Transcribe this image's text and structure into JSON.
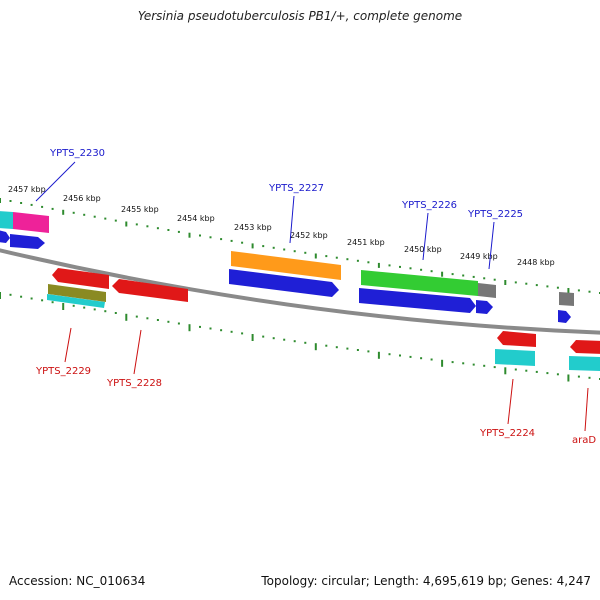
{
  "title": "Yersinia pseudotuberculosis PB1/+, complete genome",
  "footer": {
    "accession": "Accession: NC_010634",
    "stats": "Topology: circular; Length: 4,695,619 bp; Genes: 4,247"
  },
  "scale_labels": [
    "2457 kbp",
    "2456 kbp",
    "2455 kbp",
    "2454 kbp",
    "2453 kbp",
    "2452 kbp",
    "2451 kbp",
    "2450 kbp",
    "2449 kbp",
    "2448 kbp"
  ],
  "gene_labels_top": [
    "YPTS_2230",
    "YPTS_2227",
    "YPTS_2226",
    "YPTS_2225"
  ],
  "gene_labels_bottom": [
    "YPTS_2229",
    "YPTS_2228",
    "YPTS_2224",
    "araD"
  ],
  "colors": {
    "forward_label": "#1a1acc",
    "reverse_label": "#cc1111",
    "backbone": "#8a8a8a",
    "tick": "#2e8b2e",
    "cds_forward": "#1f1fd6",
    "cds_reverse": "#e01818",
    "orange": "#ff9a1a",
    "green": "#33cc33",
    "cyan": "#22cccc",
    "magenta": "#ee2299",
    "olive": "#8a8a22",
    "gray": "#777777"
  }
}
